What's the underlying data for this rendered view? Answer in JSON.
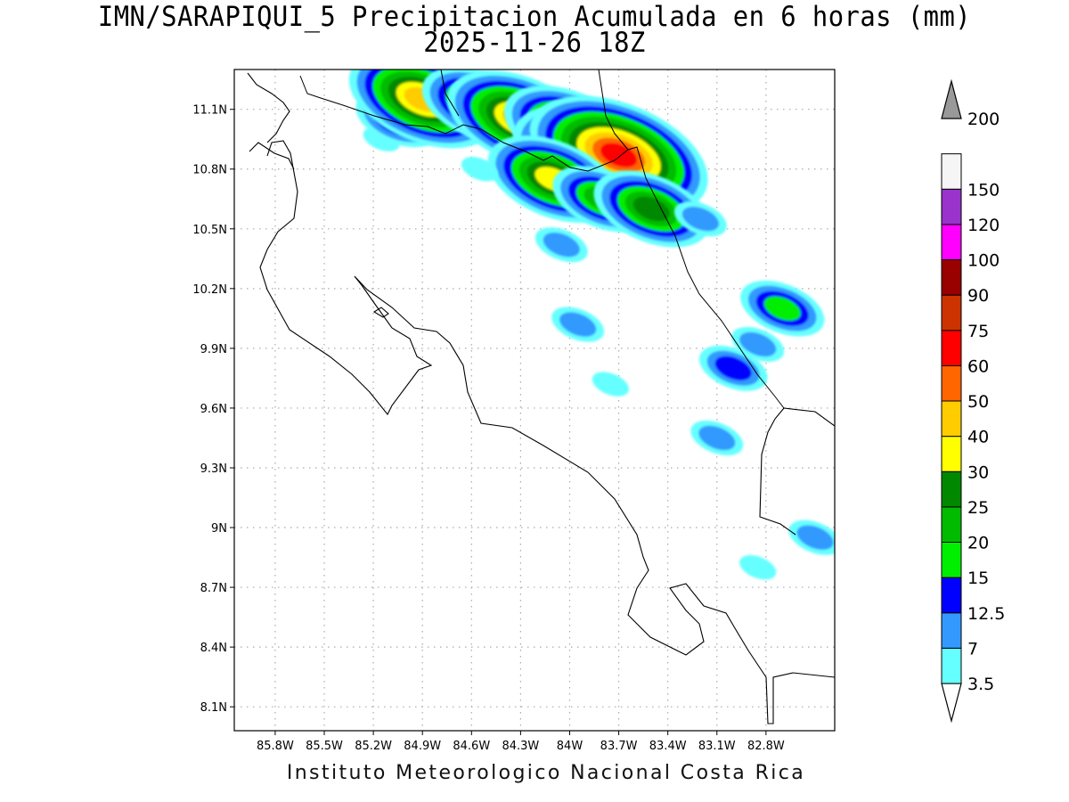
{
  "title": {
    "line1": "IMN/SARAPIQUI_5 Precipitacion Acumulada en 6 horas (mm)",
    "line2": "2025-11-26 18Z"
  },
  "credit": "Instituto Meteorologico Nacional Costa Rica",
  "map": {
    "lon_range": [
      -86.05,
      -82.38
    ],
    "lat_range": [
      7.98,
      11.3
    ],
    "grid_lines": "dotted",
    "lon_ticks": [
      {
        "value": -85.8,
        "label": "85.8W"
      },
      {
        "value": -85.5,
        "label": "85.5W"
      },
      {
        "value": -85.2,
        "label": "85.2W"
      },
      {
        "value": -84.9,
        "label": "84.9W"
      },
      {
        "value": -84.6,
        "label": "84.6W"
      },
      {
        "value": -84.3,
        "label": "84.3W"
      },
      {
        "value": -84.0,
        "label": "84W"
      },
      {
        "value": -83.7,
        "label": "83.7W"
      },
      {
        "value": -83.4,
        "label": "83.4W"
      },
      {
        "value": -83.1,
        "label": "83.1W"
      },
      {
        "value": -82.8,
        "label": "82.8W"
      }
    ],
    "lat_ticks": [
      {
        "value": 11.1,
        "label": "11.1N"
      },
      {
        "value": 10.8,
        "label": "10.8N"
      },
      {
        "value": 10.5,
        "label": "10.5N"
      },
      {
        "value": 10.2,
        "label": "10.2N"
      },
      {
        "value": 9.9,
        "label": "9.9N"
      },
      {
        "value": 9.6,
        "label": "9.6N"
      },
      {
        "value": 9.3,
        "label": "9.3N"
      },
      {
        "value": 9.0,
        "label": "9N"
      },
      {
        "value": 8.7,
        "label": "8.7N"
      },
      {
        "value": 8.4,
        "label": "8.4N"
      },
      {
        "value": 8.1,
        "label": "8.1N"
      }
    ]
  },
  "colorbar": {
    "units": "mm",
    "levels": [
      {
        "label": "3.5",
        "color": "#66ffff"
      },
      {
        "label": "7",
        "color": "#3399ff"
      },
      {
        "label": "12.5",
        "color": "#0000ff"
      },
      {
        "label": "15",
        "color": "#00ee00"
      },
      {
        "label": "20",
        "color": "#00bb00"
      },
      {
        "label": "25",
        "color": "#008800"
      },
      {
        "label": "30",
        "color": "#ffff00"
      },
      {
        "label": "40",
        "color": "#ffcc00"
      },
      {
        "label": "50",
        "color": "#ff6600"
      },
      {
        "label": "60",
        "color": "#ff0000"
      },
      {
        "label": "75",
        "color": "#cc3300"
      },
      {
        "label": "90",
        "color": "#990000"
      },
      {
        "label": "100",
        "color": "#ff00ff"
      },
      {
        "label": "120",
        "color": "#9933cc"
      },
      {
        "label": "150",
        "color": "#f5f5f5"
      },
      {
        "label": "200",
        "color": "#999999"
      }
    ]
  },
  "precip_cells": [
    {
      "lon": -85.15,
      "lat": 10.95,
      "mm": 5
    },
    {
      "lon": -85.05,
      "lat": 11.05,
      "mm": 18
    },
    {
      "lon": -84.9,
      "lat": 11.15,
      "mm": 45
    },
    {
      "lon": -84.55,
      "lat": 11.12,
      "mm": 25
    },
    {
      "lon": -84.3,
      "lat": 11.05,
      "mm": 42
    },
    {
      "lon": -84.0,
      "lat": 11.0,
      "mm": 35
    },
    {
      "lon": -83.85,
      "lat": 10.85,
      "mm": 55
    },
    {
      "lon": -83.7,
      "lat": 10.87,
      "mm": 70
    },
    {
      "lon": -84.1,
      "lat": 10.75,
      "mm": 30
    },
    {
      "lon": -83.8,
      "lat": 10.65,
      "mm": 22
    },
    {
      "lon": -83.5,
      "lat": 10.6,
      "mm": 28
    },
    {
      "lon": -83.2,
      "lat": 10.55,
      "mm": 12
    },
    {
      "lon": -84.55,
      "lat": 10.8,
      "mm": 6
    },
    {
      "lon": -84.05,
      "lat": 10.42,
      "mm": 10
    },
    {
      "lon": -82.7,
      "lat": 10.1,
      "mm": 16
    },
    {
      "lon": -82.85,
      "lat": 9.92,
      "mm": 8
    },
    {
      "lon": -83.0,
      "lat": 9.8,
      "mm": 14
    },
    {
      "lon": -83.1,
      "lat": 9.45,
      "mm": 9
    },
    {
      "lon": -83.95,
      "lat": 10.02,
      "mm": 8
    },
    {
      "lon": -83.75,
      "lat": 9.72,
      "mm": 6
    },
    {
      "lon": -82.5,
      "lat": 8.95,
      "mm": 8
    },
    {
      "lon": -82.85,
      "lat": 8.8,
      "mm": 5
    }
  ]
}
